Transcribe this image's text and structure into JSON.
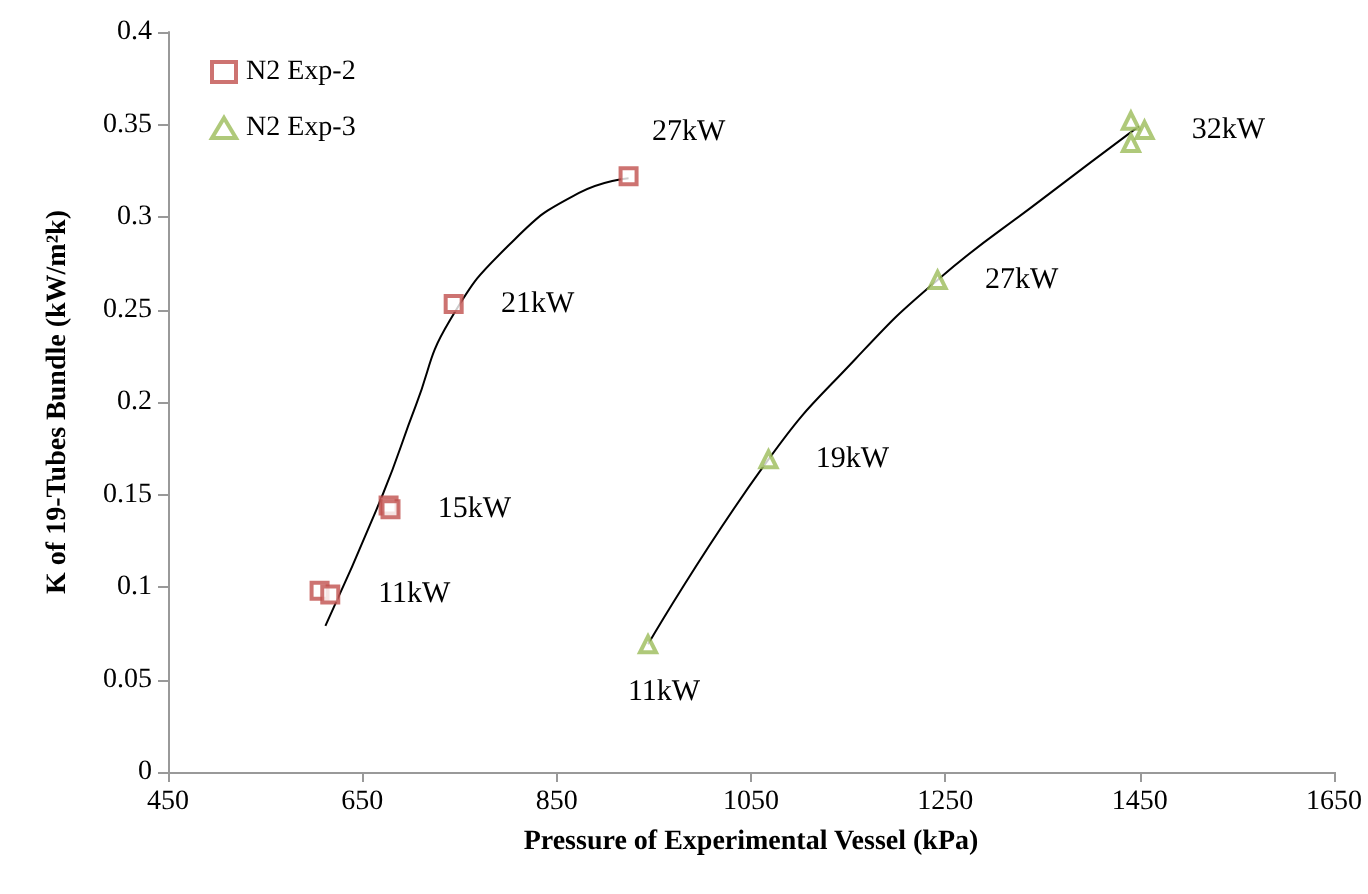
{
  "chart_data": {
    "type": "scatter",
    "xlabel": "Pressure of Experimental Vessel (kPa)",
    "ylabel": "K of 19-Tubes Bundle (kW/m²k)",
    "xlim": [
      450,
      1650
    ],
    "xticks": [
      450,
      650,
      850,
      1050,
      1250,
      1450,
      1650
    ],
    "ylim": [
      0,
      0.4
    ],
    "yticks": [
      0,
      0.05,
      0.1,
      0.15,
      0.2,
      0.25,
      0.3,
      0.35,
      0.4
    ],
    "legend": "top left",
    "series": [
      {
        "name": "N2 Exp-2",
        "type": "scatter",
        "marker": "square",
        "color": "#c0504d",
        "x": [
          606,
          617,
          677,
          679,
          744,
          924
        ],
        "values": [
          0.098,
          0.096,
          0.144,
          0.142,
          0.253,
          0.322
        ]
      },
      {
        "name": "N2 Exp-3",
        "type": "scatter",
        "marker": "triangle",
        "color": "#9bbb59",
        "x": [
          944,
          1068,
          1242,
          1441,
          1455,
          1441
        ],
        "values": [
          0.069,
          0.169,
          0.266,
          0.352,
          0.347,
          0.34
        ]
      },
      {
        "type": "line",
        "marker": "none",
        "color": "#000000",
        "x": [
          612,
          671,
          705,
          740,
          807,
          873,
          924
        ],
        "values": [
          0.079,
          0.15,
          0.198,
          0.244,
          0.288,
          0.313,
          0.321
        ]
      },
      {
        "type": "line",
        "marker": "none",
        "color": "#000000",
        "x": [
          944,
          1068,
          1157,
          1242,
          1348,
          1449
        ],
        "values": [
          0.069,
          0.169,
          0.223,
          0.266,
          0.309,
          0.349
        ]
      }
    ],
    "annotations": [
      {
        "text": "27kW",
        "x": 924,
        "y": 0.322
      },
      {
        "text": "21kW",
        "x": 744,
        "y": 0.253
      },
      {
        "text": "15kW",
        "x": 679,
        "y": 0.142
      },
      {
        "text": "11kW",
        "x": 617,
        "y": 0.096
      },
      {
        "text": "11kW",
        "x": 944,
        "y": 0.069
      },
      {
        "text": "19kW",
        "x": 1068,
        "y": 0.169
      },
      {
        "text": "27kW",
        "x": 1242,
        "y": 0.266
      },
      {
        "text": "32kW",
        "x": 1455,
        "y": 0.347
      }
    ]
  }
}
